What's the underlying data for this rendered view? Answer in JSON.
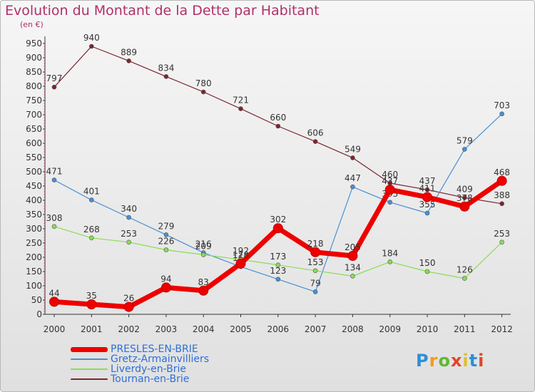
{
  "chart_data": {
    "type": "line",
    "title": "Evolution du Montant de la Dette par Habitant",
    "subtitle": "(en €)",
    "x": [
      2000,
      2001,
      2002,
      2003,
      2004,
      2005,
      2006,
      2007,
      2008,
      2009,
      2010,
      2011,
      2012
    ],
    "xticks": [
      "2000",
      "2001",
      "2002",
      "2003",
      "2004",
      "2005",
      "2006",
      "2007",
      "2008",
      "2009",
      "2010",
      "2011",
      "2012"
    ],
    "yticks": [
      "0",
      "50",
      "100",
      "150",
      "200",
      "250",
      "300",
      "350",
      "400",
      "450",
      "500",
      "550",
      "600",
      "650",
      "700",
      "750",
      "800",
      "850",
      "900",
      "950"
    ],
    "ylim": [
      0,
      950
    ],
    "grid": false,
    "legend_position": "bottom-left",
    "series": [
      {
        "name": "PRESLES-EN-BRIE",
        "color": "#ee0000",
        "values": [
          44,
          35,
          26,
          94,
          83,
          178,
          302,
          218,
          205,
          437,
          411,
          378,
          468
        ],
        "labels": [
          "44",
          "35",
          "26",
          "94",
          "83",
          "178",
          "302",
          "218",
          "205",
          "437",
          "411",
          "378",
          "468"
        ]
      },
      {
        "name": "Gretz-Armainvilliers",
        "color": "#4a8fd4",
        "values": [
          471,
          401,
          340,
          279,
          216,
          167,
          123,
          79,
          447,
          393,
          355,
          579,
          703
        ],
        "labels": [
          "471",
          "401",
          "340",
          "279",
          "216",
          "167",
          "123",
          "79",
          "447",
          "393",
          "355",
          "579",
          "703"
        ]
      },
      {
        "name": "Liverdy-en-Brie",
        "color": "#88dd55",
        "values": [
          308,
          268,
          253,
          226,
          209,
          192,
          173,
          153,
          134,
          184,
          150,
          126,
          253
        ],
        "labels": [
          "308",
          "268",
          "253",
          "226",
          "209",
          "192",
          "173",
          "153",
          "134",
          "184",
          "150",
          "126",
          "253"
        ]
      },
      {
        "name": "Tournan-en-Brie",
        "color": "#7a2530",
        "values": [
          797,
          940,
          889,
          834,
          780,
          721,
          660,
          606,
          549,
          460,
          437,
          409,
          388
        ],
        "labels": [
          "797",
          "940",
          "889",
          "834",
          "780",
          "721",
          "660",
          "606",
          "549",
          "460",
          "437",
          "409",
          "388"
        ]
      }
    ]
  },
  "logo_text": "Proxiti",
  "logo_colors": [
    "#2e8fd6",
    "#f29b1e",
    "#5fb832",
    "#e0452b",
    "#d8c42c",
    "#2e8fd6",
    "#e0452b"
  ]
}
